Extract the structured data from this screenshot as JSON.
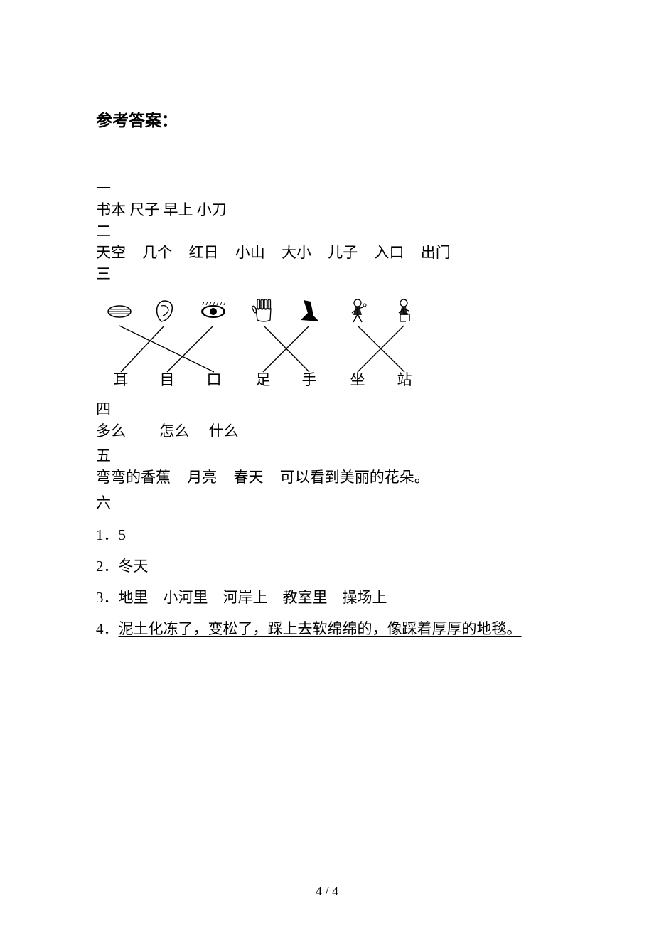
{
  "heading": "参考答案：",
  "sections": {
    "one": {
      "label": "一",
      "content": "书本 尺子 早上 小刀"
    },
    "two": {
      "label": "二",
      "items": [
        "天空",
        "几个",
        "红日",
        "小山",
        "大小",
        "儿子",
        "入口",
        "出门"
      ]
    },
    "three": {
      "label": "三",
      "chars": [
        "耳",
        "目",
        "口",
        "足",
        "手",
        "坐",
        "站"
      ],
      "iconsY": 18,
      "charsY": 115,
      "lineColor": "#000000",
      "iconPositions": [
        33,
        96,
        165,
        236,
        300,
        368,
        433
      ],
      "charPositions": [
        35,
        100,
        166,
        235,
        300,
        368,
        434
      ],
      "crossings": [
        {
          "from": 0,
          "to": 2
        },
        {
          "from": 1,
          "to": 0
        },
        {
          "from": 2,
          "to": 1
        },
        {
          "from": 3,
          "to": 4
        },
        {
          "from": 4,
          "to": 3
        },
        {
          "from": 5,
          "to": 6
        },
        {
          "from": 6,
          "to": 5
        }
      ]
    },
    "four": {
      "label": "四",
      "items": [
        "多么",
        "怎么",
        "什么"
      ]
    },
    "five": {
      "label": "五",
      "items": [
        "弯弯的香蕉",
        "月亮",
        "春天",
        "可以看到美丽的花朵。"
      ]
    },
    "six": {
      "label": "六",
      "q1": "1．5",
      "q2": "2．冬天",
      "q3": "3．地里　小河里　河岸上　教室里　操场上",
      "q4_prefix": "4．",
      "q4_underline": "泥土化冻了，变松了，踩上去软绵绵的，像踩着厚厚的地毯。"
    }
  },
  "pageNumber": "4 / 4"
}
